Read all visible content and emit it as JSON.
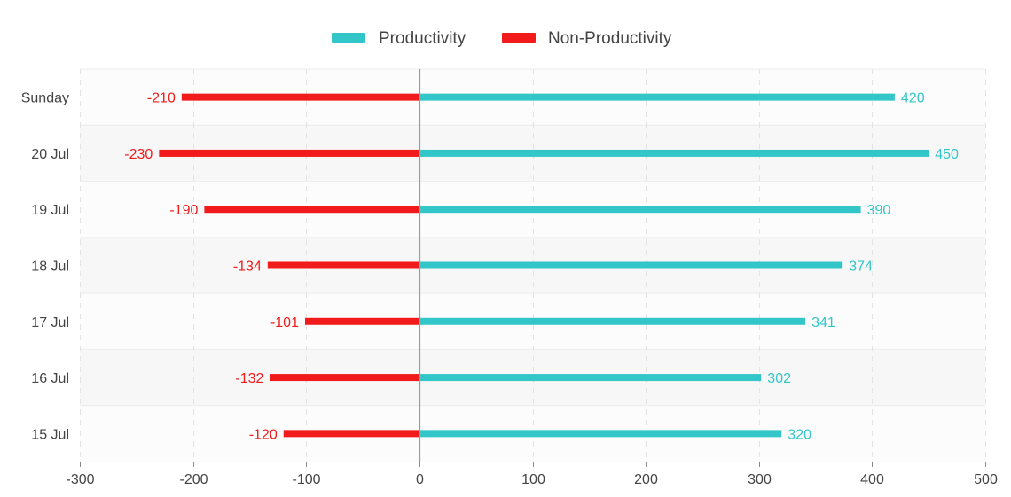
{
  "chart_data": {
    "type": "bar",
    "orientation": "horizontal",
    "categories": [
      "Sunday",
      "20 Jul",
      "19 Jul",
      "18 Jul",
      "17 Jul",
      "16 Jul",
      "15 Jul"
    ],
    "series": [
      {
        "name": "Productivity",
        "color": "#33c6c9",
        "values": [
          420,
          450,
          390,
          374,
          341,
          302,
          320
        ]
      },
      {
        "name": "Non-Productivity",
        "color": "#f11b1b",
        "values": [
          -210,
          -230,
          -190,
          -134,
          -101,
          -132,
          -120
        ]
      }
    ],
    "xlim": [
      -300,
      500
    ],
    "x_ticks": [
      -300,
      -200,
      -100,
      0,
      100,
      200,
      300,
      400,
      500
    ],
    "x_tick_labels": [
      "-300",
      "-200",
      "-100",
      "0",
      "100",
      "200",
      "300",
      "400",
      "500"
    ],
    "legend_position": "top-center",
    "grid": true,
    "data_labels": true,
    "title": "",
    "xlabel": "",
    "ylabel": ""
  }
}
